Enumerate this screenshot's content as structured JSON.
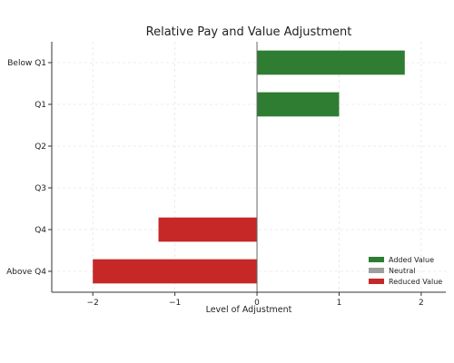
{
  "chart_data": {
    "type": "bar",
    "orientation": "horizontal",
    "title": "Relative Pay and Value Adjustment",
    "xlabel": "Level of Adjustment",
    "ylabel": "",
    "xlim": [
      -2.5,
      2.3
    ],
    "xticks": [
      -2,
      -1,
      0,
      1,
      2
    ],
    "xtick_labels": [
      "−2",
      "−1",
      "0",
      "1",
      "2"
    ],
    "grid": true,
    "legend_position": "bottom-right",
    "categories": [
      "Below Q1",
      "Q1",
      "Q2",
      "Q3",
      "Q4",
      "Above Q4"
    ],
    "values": [
      1.8,
      1.0,
      0,
      0,
      -1.2,
      -2.0
    ],
    "bar_groups": [
      "Added Value",
      "Added Value",
      "Neutral",
      "Neutral",
      "Reduced Value",
      "Reduced Value"
    ],
    "legend": [
      {
        "label": "Added Value",
        "color": "#2e7d32"
      },
      {
        "label": "Neutral",
        "color": "#9e9e9e"
      },
      {
        "label": "Reduced Value",
        "color": "#c62828"
      }
    ]
  }
}
